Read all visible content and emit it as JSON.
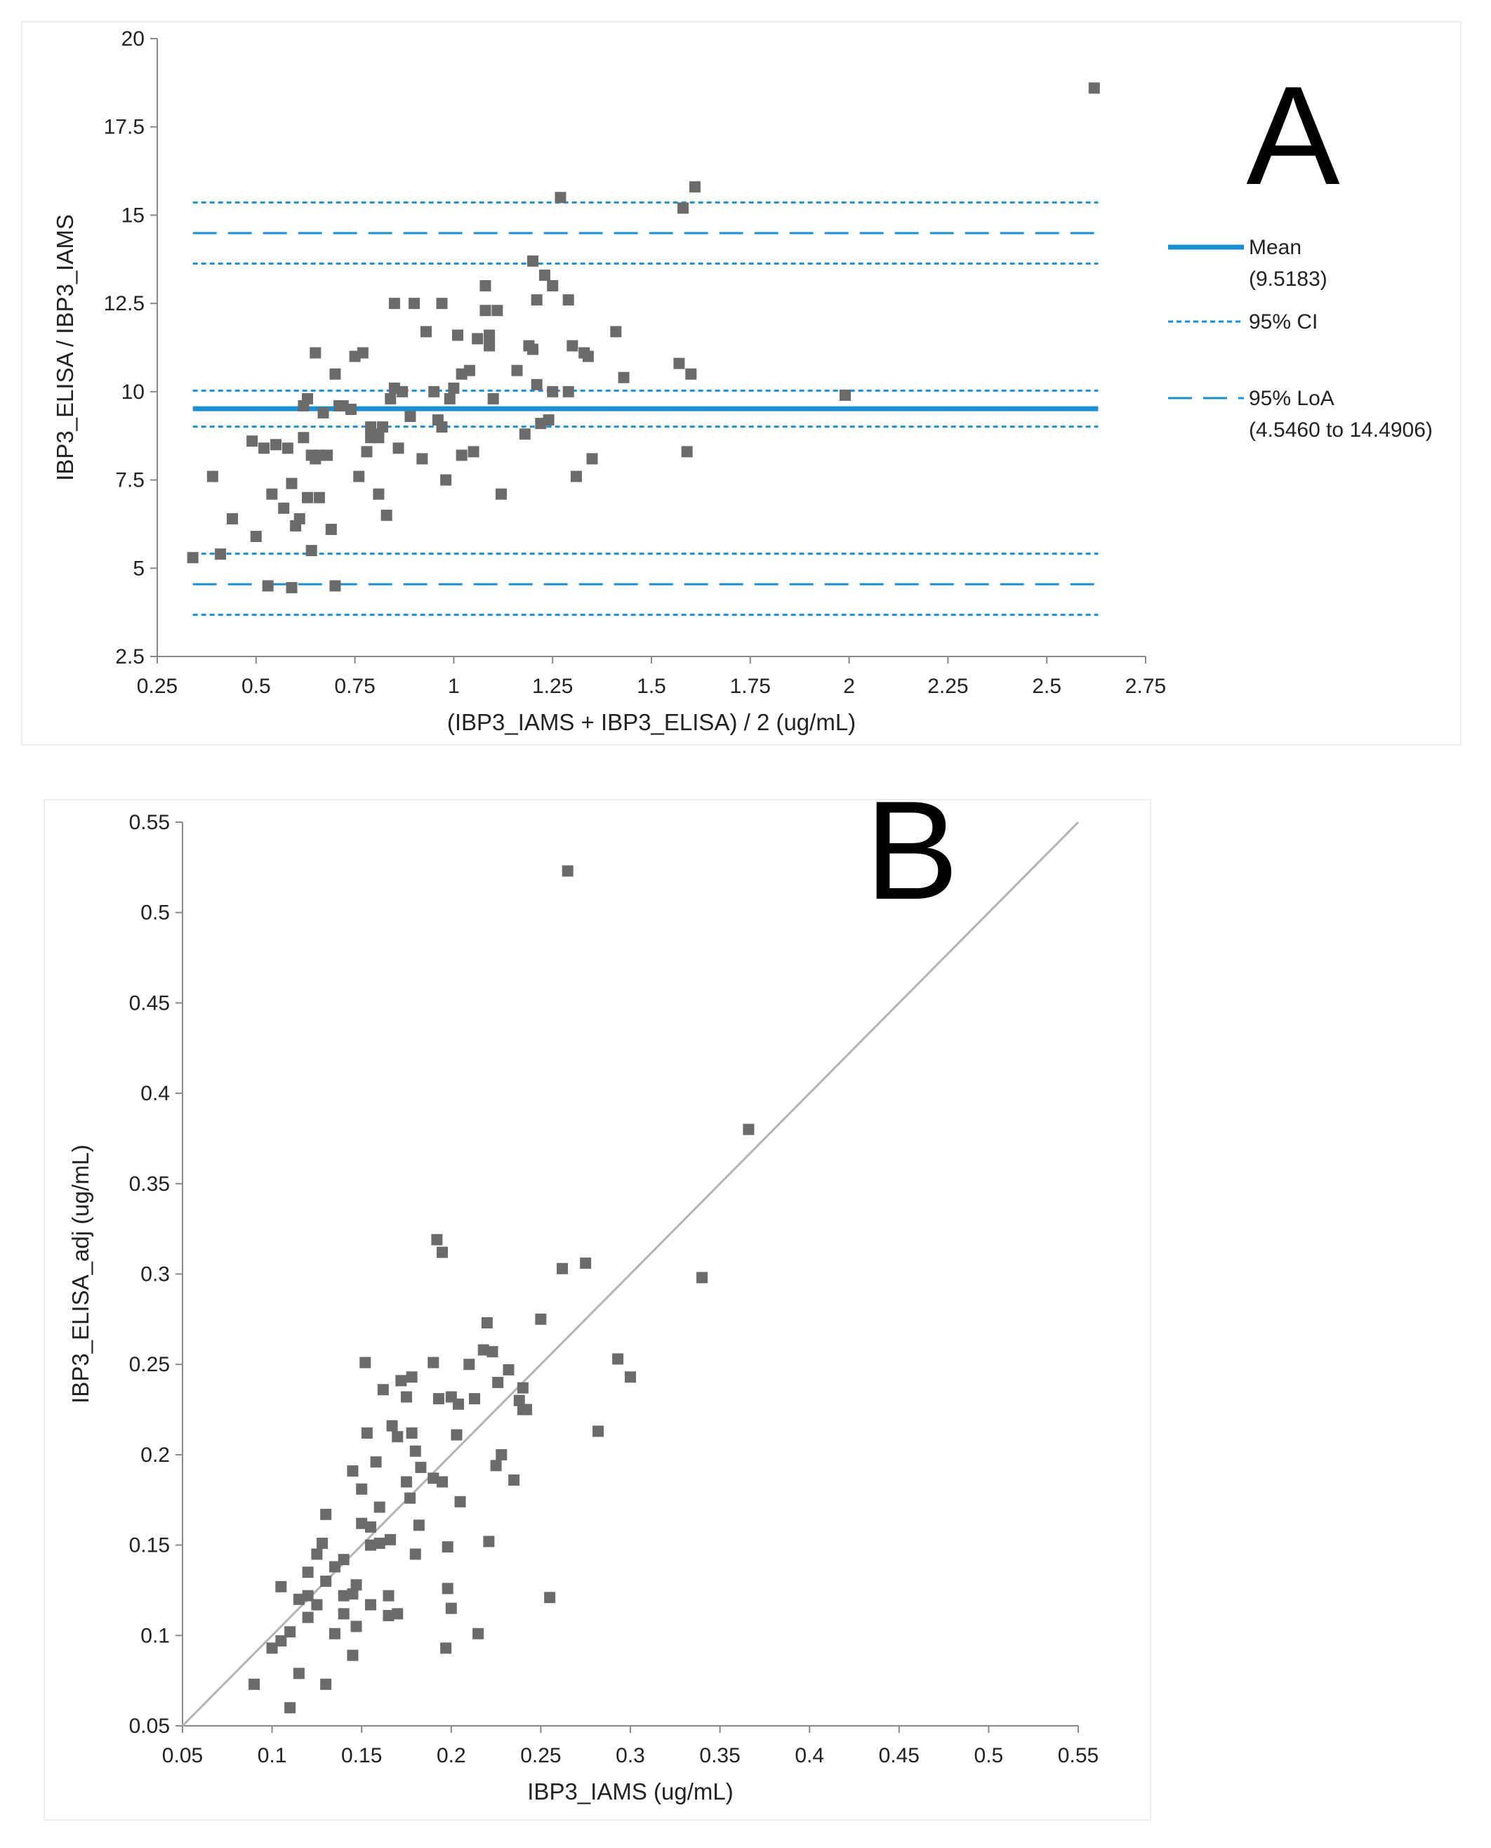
{
  "panels": [
    {
      "letter": "A",
      "chart_data": {
        "type": "scatter",
        "title": "",
        "xlabel": "(IBP3_IAMS + IBP3_ELISA) / 2 (ug/mL)",
        "ylabel": "IBP3_ELISA / IBP3_IAMS",
        "xlim": [
          0.25,
          2.75
        ],
        "ylim": [
          2.5,
          20
        ],
        "x_ticks": [
          "0.25",
          "0.5",
          "0.75",
          "1",
          "1.25",
          "1.5",
          "1.75",
          "2",
          "2.25",
          "2.5",
          "2.75"
        ],
        "y_ticks": [
          "2.5",
          "5",
          "7.5",
          "10",
          "12.5",
          "15",
          "17.5",
          "20"
        ],
        "grid": false,
        "legend_position": "right",
        "reference_lines": [
          {
            "name": "Mean",
            "value": 9.5183,
            "style": "solid"
          },
          {
            "name": "95% CI",
            "value": 9.01,
            "style": "dotted"
          },
          {
            "name": "95% CI",
            "value": 10.03,
            "style": "dotted"
          },
          {
            "name": "95% LoA",
            "value": 4.546,
            "style": "dashed"
          },
          {
            "name": "95% CI",
            "value": 3.68,
            "style": "dotted"
          },
          {
            "name": "95% CI",
            "value": 5.41,
            "style": "dotted"
          },
          {
            "name": "95% LoA",
            "value": 14.4906,
            "style": "dashed"
          },
          {
            "name": "95% CI",
            "value": 13.63,
            "style": "dotted"
          },
          {
            "name": "95% CI",
            "value": 15.36,
            "style": "dotted"
          }
        ],
        "reference_x_range": [
          0.34,
          2.63
        ],
        "legend": [
          {
            "label": "Mean",
            "sub": "(9.5183)",
            "style": "solid"
          },
          {
            "label": "95% CI",
            "sub": "",
            "style": "dotted"
          },
          {
            "label": "95% LoA",
            "sub": "(4.5460 to 14.4906)",
            "style": "dashed"
          }
        ],
        "series": [
          {
            "name": "points",
            "x": [
              0.34,
              0.39,
              0.41,
              0.44,
              0.49,
              0.5,
              0.52,
              0.53,
              0.54,
              0.55,
              0.57,
              0.58,
              0.59,
              0.59,
              0.6,
              0.61,
              0.62,
              0.62,
              0.63,
              0.63,
              0.64,
              0.64,
              0.65,
              0.65,
              0.66,
              0.66,
              0.67,
              0.68,
              0.69,
              0.7,
              0.7,
              0.71,
              0.72,
              0.74,
              0.75,
              0.76,
              0.77,
              0.78,
              0.79,
              0.79,
              0.8,
              0.81,
              0.81,
              0.82,
              0.83,
              0.84,
              0.85,
              0.85,
              0.86,
              0.87,
              0.89,
              0.9,
              0.92,
              0.93,
              0.95,
              0.96,
              0.97,
              0.97,
              0.98,
              0.99,
              1.0,
              1.01,
              1.02,
              1.02,
              1.04,
              1.05,
              1.06,
              1.08,
              1.08,
              1.09,
              1.09,
              1.1,
              1.11,
              1.12,
              1.16,
              1.18,
              1.19,
              1.2,
              1.2,
              1.21,
              1.21,
              1.22,
              1.23,
              1.24,
              1.25,
              1.25,
              1.27,
              1.29,
              1.29,
              1.3,
              1.31,
              1.33,
              1.34,
              1.35,
              1.41,
              1.43,
              1.57,
              1.58,
              1.59,
              1.6,
              1.61,
              1.99,
              2.62
            ],
            "y": [
              5.3,
              7.6,
              5.4,
              6.4,
              8.6,
              5.9,
              8.4,
              4.5,
              7.1,
              8.5,
              6.7,
              8.4,
              4.45,
              7.4,
              6.2,
              6.4,
              8.7,
              9.6,
              7.0,
              9.8,
              5.5,
              8.2,
              8.1,
              11.1,
              7.0,
              8.2,
              9.4,
              8.2,
              6.1,
              4.5,
              10.5,
              9.6,
              9.6,
              9.5,
              11.0,
              7.6,
              11.1,
              8.3,
              8.7,
              9.0,
              8.8,
              7.1,
              8.7,
              9.0,
              6.5,
              9.8,
              10.1,
              12.5,
              8.4,
              10.0,
              9.3,
              12.5,
              8.1,
              11.7,
              10.0,
              9.2,
              9.0,
              12.5,
              7.5,
              9.8,
              10.1,
              11.6,
              8.2,
              10.5,
              10.6,
              8.3,
              11.5,
              12.3,
              13.0,
              11.3,
              11.6,
              9.8,
              12.3,
              7.1,
              10.6,
              8.8,
              11.3,
              11.2,
              13.7,
              12.6,
              10.2,
              9.1,
              13.3,
              9.2,
              13.0,
              10.0,
              15.5,
              12.6,
              10.0,
              11.3,
              7.6,
              11.1,
              11.0,
              8.1,
              11.7,
              10.4,
              10.8,
              15.2,
              8.3,
              10.5,
              15.8,
              9.9,
              18.6
            ]
          }
        ]
      }
    },
    {
      "letter": "B",
      "chart_data": {
        "type": "scatter",
        "title": "",
        "xlabel": "IBP3_IAMS (ug/mL)",
        "ylabel": "IBP3_ELISA_adj (ug/mL)",
        "xlim": [
          0.05,
          0.55
        ],
        "ylim": [
          0.05,
          0.55
        ],
        "x_ticks": [
          "0.05",
          "0.1",
          "0.15",
          "0.2",
          "0.25",
          "0.3",
          "0.35",
          "0.4",
          "0.45",
          "0.5",
          "0.55"
        ],
        "y_ticks": [
          "0.05",
          "0.1",
          "0.15",
          "0.2",
          "0.25",
          "0.3",
          "0.35",
          "0.4",
          "0.45",
          "0.5",
          "0.55"
        ],
        "grid": false,
        "identity_line": [
          [
            0.05,
            0.05
          ],
          [
            0.55,
            0.55
          ]
        ],
        "series": [
          {
            "name": "points",
            "x": [
              0.09,
              0.1,
              0.105,
              0.105,
              0.11,
              0.11,
              0.115,
              0.115,
              0.12,
              0.12,
              0.12,
              0.125,
              0.125,
              0.128,
              0.13,
              0.13,
              0.13,
              0.135,
              0.135,
              0.14,
              0.14,
              0.14,
              0.145,
              0.145,
              0.145,
              0.147,
              0.147,
              0.15,
              0.15,
              0.152,
              0.153,
              0.155,
              0.155,
              0.155,
              0.158,
              0.16,
              0.16,
              0.162,
              0.165,
              0.165,
              0.166,
              0.167,
              0.17,
              0.17,
              0.172,
              0.175,
              0.175,
              0.177,
              0.178,
              0.178,
              0.18,
              0.18,
              0.182,
              0.183,
              0.19,
              0.19,
              0.192,
              0.193,
              0.195,
              0.195,
              0.197,
              0.198,
              0.198,
              0.2,
              0.2,
              0.203,
              0.204,
              0.205,
              0.21,
              0.213,
              0.215,
              0.218,
              0.22,
              0.221,
              0.223,
              0.225,
              0.226,
              0.228,
              0.232,
              0.235,
              0.238,
              0.24,
              0.24,
              0.242,
              0.25,
              0.255,
              0.262,
              0.265,
              0.275,
              0.282,
              0.293,
              0.3,
              0.34,
              0.366
            ],
            "y": [
              0.073,
              0.093,
              0.097,
              0.127,
              0.102,
              0.06,
              0.079,
              0.12,
              0.122,
              0.11,
              0.135,
              0.117,
              0.145,
              0.151,
              0.13,
              0.167,
              0.073,
              0.101,
              0.138,
              0.122,
              0.142,
              0.112,
              0.123,
              0.089,
              0.191,
              0.128,
              0.105,
              0.181,
              0.162,
              0.251,
              0.212,
              0.16,
              0.117,
              0.15,
              0.196,
              0.151,
              0.171,
              0.236,
              0.122,
              0.111,
              0.153,
              0.216,
              0.112,
              0.21,
              0.241,
              0.185,
              0.232,
              0.176,
              0.212,
              0.243,
              0.145,
              0.202,
              0.161,
              0.193,
              0.251,
              0.187,
              0.319,
              0.231,
              0.312,
              0.185,
              0.093,
              0.149,
              0.126,
              0.115,
              0.232,
              0.211,
              0.228,
              0.174,
              0.25,
              0.231,
              0.101,
              0.258,
              0.273,
              0.152,
              0.257,
              0.194,
              0.24,
              0.2,
              0.247,
              0.186,
              0.23,
              0.225,
              0.237,
              0.225,
              0.275,
              0.121,
              0.303,
              0.523,
              0.306,
              0.213,
              0.253,
              0.243,
              0.298,
              0.38
            ]
          }
        ]
      }
    }
  ]
}
